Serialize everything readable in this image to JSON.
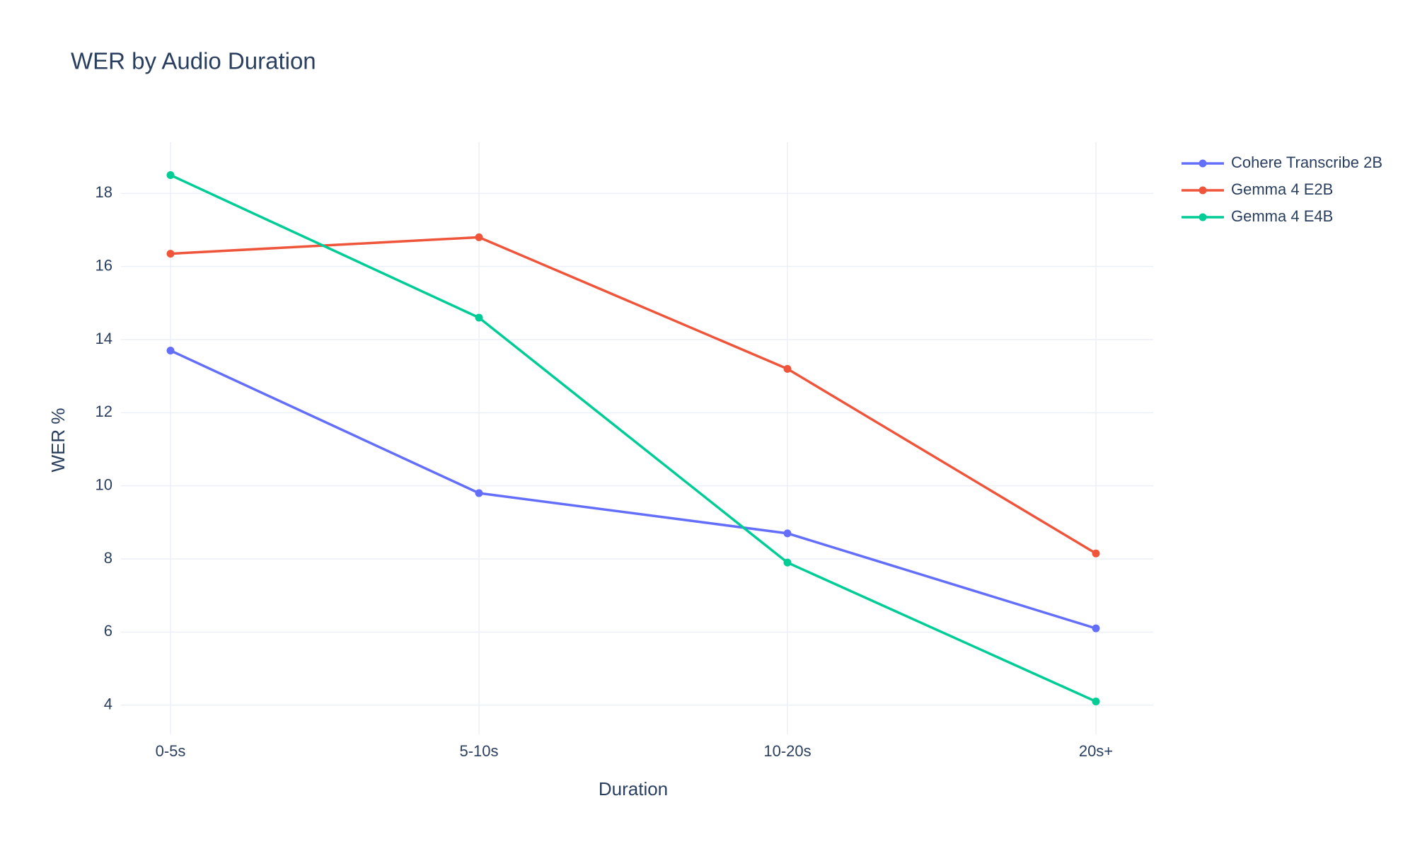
{
  "chart_data": {
    "type": "line",
    "title": "WER by Audio Duration",
    "x_label": "Duration",
    "y_label": "WER %",
    "categories": [
      "0-5s",
      "5-10s",
      "10-20s",
      "20s+"
    ],
    "series": [
      {
        "name": "Cohere Transcribe 2B",
        "color": "#636efa",
        "values": [
          13.7,
          9.8,
          8.7,
          6.1
        ]
      },
      {
        "name": "Gemma 4 E2B",
        "color": "#ef553b",
        "values": [
          16.35,
          16.8,
          13.2,
          8.15
        ]
      },
      {
        "name": "Gemma 4 E4B",
        "color": "#00cc96",
        "values": [
          18.5,
          14.6,
          7.9,
          4.1
        ]
      }
    ],
    "ylim": [
      3.2,
      19.4
    ],
    "yticks": [
      4,
      6,
      8,
      10,
      12,
      14,
      16,
      18
    ],
    "grid": true,
    "legend": "top-right"
  }
}
